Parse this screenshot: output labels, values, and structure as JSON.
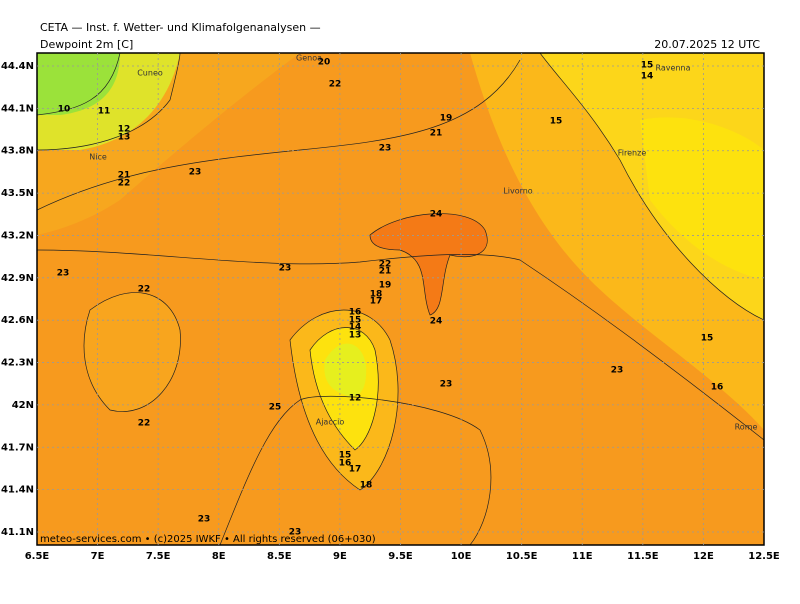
{
  "header": {
    "title": "CETA — Inst. f. Wetter- und Klimafolgenanalysen —",
    "variable": "Dewpoint 2m [C]",
    "time": "20.07.2025 12 UTC"
  },
  "axes": {
    "x_labels": [
      "6.5E",
      "7E",
      "7.5E",
      "8E",
      "8.5E",
      "9E",
      "9.5E",
      "10E",
      "10.5E",
      "11E",
      "11.5E",
      "12E",
      "12.5E"
    ],
    "y_labels": [
      "44.4N",
      "44.1N",
      "43.8N",
      "43.5N",
      "43.2N",
      "42.9N",
      "42.6N",
      "42.3N",
      "42N",
      "41.7N",
      "41.4N",
      "41.1N"
    ]
  },
  "cities": [
    "Genoa",
    "Cuneo",
    "Nice",
    "Livorno",
    "Firenze",
    "Ravenna",
    "Ajaccio",
    "Rome"
  ],
  "contour_labels": [
    "20",
    "22",
    "19",
    "21",
    "23",
    "15",
    "15",
    "14",
    "10",
    "11",
    "12",
    "13",
    "21",
    "22",
    "23",
    "24",
    "23",
    "22",
    "23",
    "22",
    "21",
    "19",
    "18",
    "17",
    "16",
    "15",
    "14",
    "13",
    "24",
    "23",
    "12",
    "25",
    "22",
    "15",
    "16",
    "17",
    "18",
    "23",
    "23",
    "15",
    "16",
    "23"
  ],
  "footer": "meteo-services.com • (c)2025 IWKF • All rights reserved (06+030)"
}
